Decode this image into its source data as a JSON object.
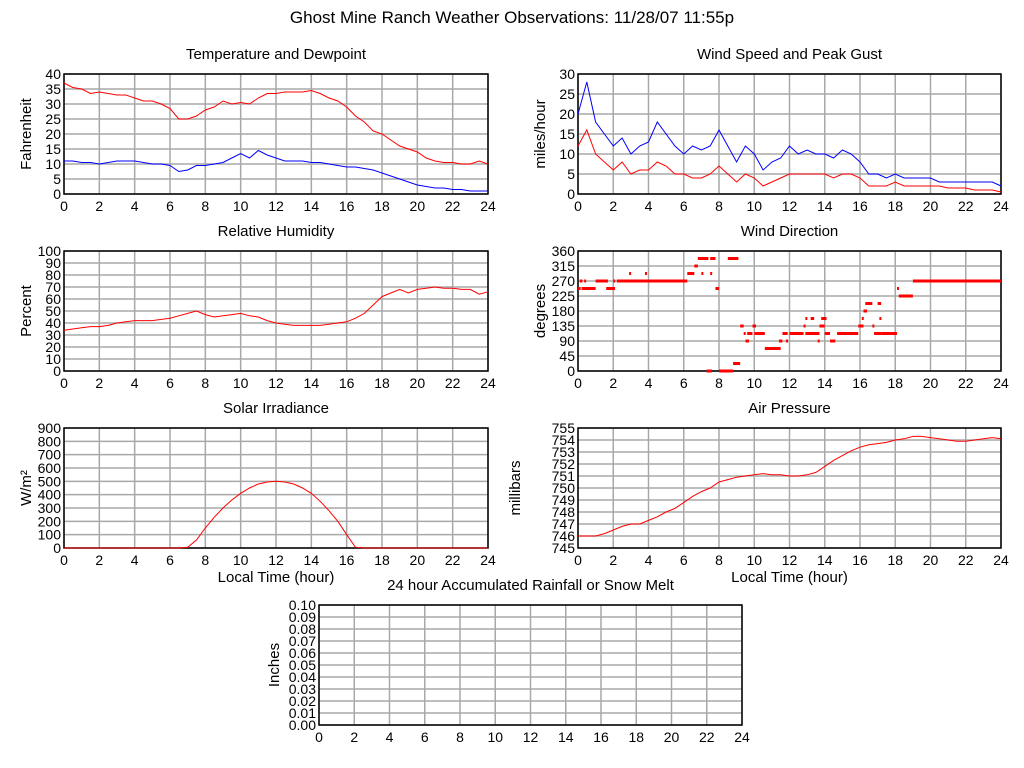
{
  "page_title": "Ghost Mine Ranch Weather Observations: 11/28/07 11:55p",
  "colors": {
    "red": "#ff0000",
    "blue": "#0000ff",
    "grid": "#a8a8a8",
    "axis": "#000000"
  },
  "chart_data": [
    {
      "id": "temperature",
      "type": "line",
      "title": "Temperature and Dewpoint",
      "ylabel": "Fahrenheit",
      "xlabel": "",
      "xlim": [
        0,
        24
      ],
      "ylim": [
        0,
        40
      ],
      "xticks": [
        0,
        2,
        4,
        6,
        8,
        10,
        12,
        14,
        16,
        18,
        20,
        22,
        24
      ],
      "yticks": [
        0,
        5,
        10,
        15,
        20,
        25,
        30,
        35,
        40
      ],
      "grid": true,
      "x": [
        0,
        0.5,
        1,
        1.5,
        2,
        2.5,
        3,
        3.5,
        4,
        4.5,
        5,
        5.5,
        6,
        6.5,
        7,
        7.5,
        8,
        8.5,
        9,
        9.5,
        10,
        10.5,
        11,
        11.5,
        12,
        12.5,
        13,
        13.5,
        14,
        14.5,
        15,
        15.5,
        16,
        16.5,
        17,
        17.5,
        18,
        18.5,
        19,
        19.5,
        20,
        20.5,
        21,
        21.5,
        22,
        22.5,
        23,
        23.5,
        24
      ],
      "series": [
        {
          "color": "#ff0000",
          "values": [
            37,
            35.5,
            35,
            33.5,
            34,
            33.5,
            33,
            33,
            32,
            31,
            31,
            30,
            28.5,
            25,
            25,
            26,
            28,
            29,
            31,
            30,
            30.5,
            30,
            32,
            33.5,
            33.5,
            34,
            34,
            34,
            34.5,
            33.5,
            32,
            31,
            29,
            26,
            24,
            21,
            20,
            18,
            16,
            15,
            14,
            12,
            11,
            10.5,
            10.5,
            10,
            10,
            11,
            10
          ]
        },
        {
          "color": "#0000ff",
          "values": [
            11,
            11,
            10.5,
            10.5,
            10,
            10.5,
            11,
            11,
            11,
            10.5,
            10,
            10,
            9.5,
            7.5,
            8,
            9.5,
            9.5,
            10,
            10.5,
            12,
            13.5,
            12,
            14.5,
            13,
            12,
            11,
            11,
            11,
            10.5,
            10.5,
            10,
            9.5,
            9,
            9,
            8.5,
            8,
            7,
            6,
            5,
            4,
            3,
            2.5,
            2,
            2,
            1.5,
            1.5,
            1,
            1,
            1
          ]
        }
      ]
    },
    {
      "id": "wind-speed",
      "type": "line",
      "title": "Wind Speed and Peak Gust",
      "ylabel": "miles/hour",
      "xlabel": "",
      "xlim": [
        0,
        24
      ],
      "ylim": [
        0,
        30
      ],
      "xticks": [
        0,
        2,
        4,
        6,
        8,
        10,
        12,
        14,
        16,
        18,
        20,
        22,
        24
      ],
      "yticks": [
        0,
        5,
        10,
        15,
        20,
        25,
        30
      ],
      "grid": true,
      "x": [
        0,
        0.5,
        1,
        1.5,
        2,
        2.5,
        3,
        3.5,
        4,
        4.5,
        5,
        5.5,
        6,
        6.5,
        7,
        7.5,
        8,
        8.5,
        9,
        9.5,
        10,
        10.5,
        11,
        11.5,
        12,
        12.5,
        13,
        13.5,
        14,
        14.5,
        15,
        15.5,
        16,
        16.5,
        17,
        17.5,
        18,
        18.5,
        19,
        19.5,
        20,
        20.5,
        21,
        21.5,
        22,
        22.5,
        23,
        23.5,
        24
      ],
      "series": [
        {
          "color": "#0000ff",
          "values": [
            20,
            28,
            18,
            15,
            12,
            14,
            10,
            12,
            13,
            18,
            15,
            12,
            10,
            12,
            11,
            12,
            16,
            12,
            8,
            12,
            10,
            6,
            8,
            9,
            12,
            10,
            11,
            10,
            10,
            9,
            11,
            10,
            8,
            5,
            5,
            4,
            5,
            4,
            4,
            4,
            4,
            3,
            3,
            3,
            3,
            3,
            3,
            3,
            2
          ]
        },
        {
          "color": "#ff0000",
          "values": [
            12,
            16,
            10,
            8,
            6,
            8,
            5,
            6,
            6,
            8,
            7,
            5,
            5,
            4,
            4,
            5,
            7,
            5,
            3,
            5,
            4,
            2,
            3,
            4,
            5,
            5,
            5,
            5,
            5,
            4,
            5,
            5,
            4,
            2,
            2,
            2,
            3,
            2,
            2,
            2,
            2,
            2,
            1.5,
            1.5,
            1.5,
            1,
            1,
            1,
            0.5
          ]
        }
      ]
    },
    {
      "id": "humidity",
      "type": "line",
      "title": "Relative Humidity",
      "ylabel": "Percent",
      "xlabel": "",
      "xlim": [
        0,
        24
      ],
      "ylim": [
        0,
        100
      ],
      "xticks": [
        0,
        2,
        4,
        6,
        8,
        10,
        12,
        14,
        16,
        18,
        20,
        22,
        24
      ],
      "yticks": [
        0,
        10,
        20,
        30,
        40,
        50,
        60,
        70,
        80,
        90,
        100
      ],
      "grid": true,
      "x": [
        0,
        0.5,
        1,
        1.5,
        2,
        2.5,
        3,
        3.5,
        4,
        4.5,
        5,
        5.5,
        6,
        6.5,
        7,
        7.5,
        8,
        8.5,
        9,
        9.5,
        10,
        10.5,
        11,
        11.5,
        12,
        12.5,
        13,
        13.5,
        14,
        14.5,
        15,
        15.5,
        16,
        16.5,
        17,
        17.5,
        18,
        18.5,
        19,
        19.5,
        20,
        20.5,
        21,
        21.5,
        22,
        22.5,
        23,
        23.5,
        24
      ],
      "series": [
        {
          "color": "#ff0000",
          "values": [
            34,
            35,
            36,
            37,
            37,
            38,
            40,
            41,
            42,
            42,
            42,
            43,
            44,
            46,
            48,
            50,
            47,
            45,
            46,
            47,
            48,
            46,
            45,
            42,
            40,
            39,
            38,
            38,
            38,
            38,
            39,
            40,
            41,
            44,
            48,
            55,
            62,
            65,
            68,
            65,
            68,
            69,
            70,
            69,
            69,
            68,
            68,
            64,
            66
          ]
        }
      ]
    },
    {
      "id": "wind-direction",
      "type": "scatter",
      "title": "Wind Direction",
      "ylabel": "degrees",
      "xlabel": "",
      "xlim": [
        0,
        24
      ],
      "ylim": [
        0,
        360
      ],
      "xticks": [
        0,
        2,
        4,
        6,
        8,
        10,
        12,
        14,
        16,
        18,
        20,
        22,
        24
      ],
      "yticks": [
        0,
        45,
        90,
        135,
        180,
        225,
        270,
        315,
        360
      ],
      "grid": true,
      "color": "#ff0000",
      "segments": [
        [
          0,
          0.15,
          247.5
        ],
        [
          0.1,
          0.25,
          270
        ],
        [
          0.2,
          1,
          247.5
        ],
        [
          0.35,
          0.45,
          270
        ],
        [
          1,
          1.7,
          270
        ],
        [
          1.6,
          2.1,
          247.5
        ],
        [
          2,
          2.1,
          270
        ],
        [
          2.2,
          6.2,
          270
        ],
        [
          2.9,
          3.0,
          292.5
        ],
        [
          3.8,
          3.9,
          292.5
        ],
        [
          6.2,
          6.6,
          292.5
        ],
        [
          6.6,
          6.8,
          315
        ],
        [
          6.8,
          7.4,
          337.5
        ],
        [
          7.5,
          7.8,
          337.5
        ],
        [
          8.5,
          9.1,
          337.5
        ],
        [
          7.0,
          7.1,
          292.5
        ],
        [
          7.5,
          7.6,
          292.5
        ],
        [
          7.8,
          8.0,
          247.5
        ],
        [
          7.3,
          7.6,
          0
        ],
        [
          8.0,
          8.8,
          0
        ],
        [
          8.8,
          9.2,
          22.5
        ],
        [
          9.2,
          9.4,
          135
        ],
        [
          9.4,
          9.5,
          112.5
        ],
        [
          9.5,
          9.7,
          90
        ],
        [
          9.6,
          9.9,
          112.5
        ],
        [
          9.9,
          10.1,
          135
        ],
        [
          10.0,
          10.6,
          112.5
        ],
        [
          10.6,
          11.5,
          67.5
        ],
        [
          11.4,
          11.6,
          90
        ],
        [
          11.6,
          11.9,
          112.5
        ],
        [
          11.8,
          11.9,
          90
        ],
        [
          12,
          12.8,
          112.5
        ],
        [
          12.8,
          12.9,
          135
        ],
        [
          12.9,
          13.0,
          157.5
        ],
        [
          12.9,
          13.7,
          112.5
        ],
        [
          13.2,
          13.4,
          157.5
        ],
        [
          13.6,
          13.7,
          90
        ],
        [
          13.7,
          14.0,
          135
        ],
        [
          13.8,
          14.1,
          157.5
        ],
        [
          14,
          14.3,
          112.5
        ],
        [
          14.3,
          14.6,
          90
        ],
        [
          14.7,
          15.9,
          112.5
        ],
        [
          15.9,
          16.2,
          135
        ],
        [
          16.1,
          16.2,
          157.5
        ],
        [
          16.2,
          16.4,
          180
        ],
        [
          16.3,
          16.7,
          202.5
        ],
        [
          16.7,
          16.8,
          135
        ],
        [
          16.8,
          17.2,
          112.5
        ],
        [
          17.0,
          17.2,
          202.5
        ],
        [
          17.2,
          18.1,
          112.5
        ],
        [
          17.1,
          17.2,
          157.5
        ],
        [
          18.1,
          18.2,
          247.5
        ],
        [
          18.2,
          19.0,
          225
        ],
        [
          19.0,
          24,
          270
        ]
      ]
    },
    {
      "id": "solar",
      "type": "line",
      "title": "Solar Irradiance",
      "ylabel": "W/m²",
      "xlabel": "Local Time (hour)",
      "xlim": [
        0,
        24
      ],
      "ylim": [
        0,
        900
      ],
      "xticks": [
        0,
        2,
        4,
        6,
        8,
        10,
        12,
        14,
        16,
        18,
        20,
        22,
        24
      ],
      "yticks": [
        0,
        100,
        200,
        300,
        400,
        500,
        600,
        700,
        800,
        900
      ],
      "grid": true,
      "x": [
        0,
        0.5,
        1,
        1.5,
        2,
        2.5,
        3,
        3.5,
        4,
        4.5,
        5,
        5.5,
        6,
        6.5,
        7,
        7.5,
        8,
        8.5,
        9,
        9.5,
        10,
        10.5,
        11,
        11.5,
        12,
        12.5,
        13,
        13.5,
        14,
        14.5,
        15,
        15.5,
        16,
        16.5,
        17,
        17.5,
        18,
        18.5,
        19,
        19.5,
        20,
        20.5,
        21,
        21.5,
        22,
        22.5,
        23,
        23.5,
        24
      ],
      "series": [
        {
          "color": "#ff0000",
          "values": [
            0,
            0,
            0,
            0,
            0,
            0,
            0,
            0,
            0,
            0,
            0,
            0,
            0,
            0,
            5,
            60,
            150,
            230,
            300,
            360,
            410,
            450,
            480,
            495,
            500,
            495,
            480,
            450,
            410,
            350,
            280,
            200,
            100,
            5,
            0,
            0,
            0,
            0,
            0,
            0,
            0,
            0,
            0,
            0,
            0,
            0,
            0,
            0,
            0
          ]
        }
      ]
    },
    {
      "id": "pressure",
      "type": "line",
      "title": "Air Pressure",
      "ylabel": "millibars",
      "xlabel": "Local Time (hour)",
      "xlim": [
        0,
        24
      ],
      "ylim": [
        745,
        755
      ],
      "xticks": [
        0,
        2,
        4,
        6,
        8,
        10,
        12,
        14,
        16,
        18,
        20,
        22,
        24
      ],
      "yticks": [
        745,
        746,
        747,
        748,
        749,
        750,
        751,
        752,
        753,
        754,
        755
      ],
      "grid": true,
      "x": [
        0,
        0.5,
        1,
        1.5,
        2,
        2.5,
        3,
        3.5,
        4,
        4.5,
        5,
        5.5,
        6,
        6.5,
        7,
        7.5,
        8,
        8.5,
        9,
        9.5,
        10,
        10.5,
        11,
        11.5,
        12,
        12.5,
        13,
        13.5,
        14,
        14.5,
        15,
        15.5,
        16,
        16.5,
        17,
        17.5,
        18,
        18.5,
        19,
        19.5,
        20,
        20.5,
        21,
        21.5,
        22,
        22.5,
        23,
        23.5,
        24
      ],
      "series": [
        {
          "color": "#ff0000",
          "values": [
            746,
            746,
            746,
            746.2,
            746.5,
            746.8,
            747,
            747,
            747.3,
            747.6,
            748,
            748.3,
            748.8,
            749.3,
            749.7,
            750,
            750.5,
            750.7,
            750.9,
            751,
            751.1,
            751.2,
            751.1,
            751.1,
            751,
            751,
            751.1,
            751.3,
            751.8,
            752.3,
            752.7,
            753.1,
            753.4,
            753.6,
            753.7,
            753.8,
            754,
            754.1,
            754.3,
            754.3,
            754.2,
            754.1,
            754,
            753.9,
            753.9,
            754,
            754.1,
            754.2,
            754.1
          ]
        }
      ]
    },
    {
      "id": "rainfall",
      "type": "line",
      "title": "24 hour Accumulated Rainfall or Snow Melt",
      "ylabel": "Inches",
      "xlabel": "",
      "xlim": [
        0,
        24
      ],
      "ylim": [
        0,
        0.1
      ],
      "xticks": [
        0,
        2,
        4,
        6,
        8,
        10,
        12,
        14,
        16,
        18,
        20,
        22,
        24
      ],
      "yticks": [
        "0.00",
        "0.01",
        "0.02",
        "0.03",
        "0.04",
        "0.05",
        "0.06",
        "0.07",
        "0.08",
        "0.09",
        "0.10"
      ],
      "grid": true,
      "series": []
    }
  ]
}
